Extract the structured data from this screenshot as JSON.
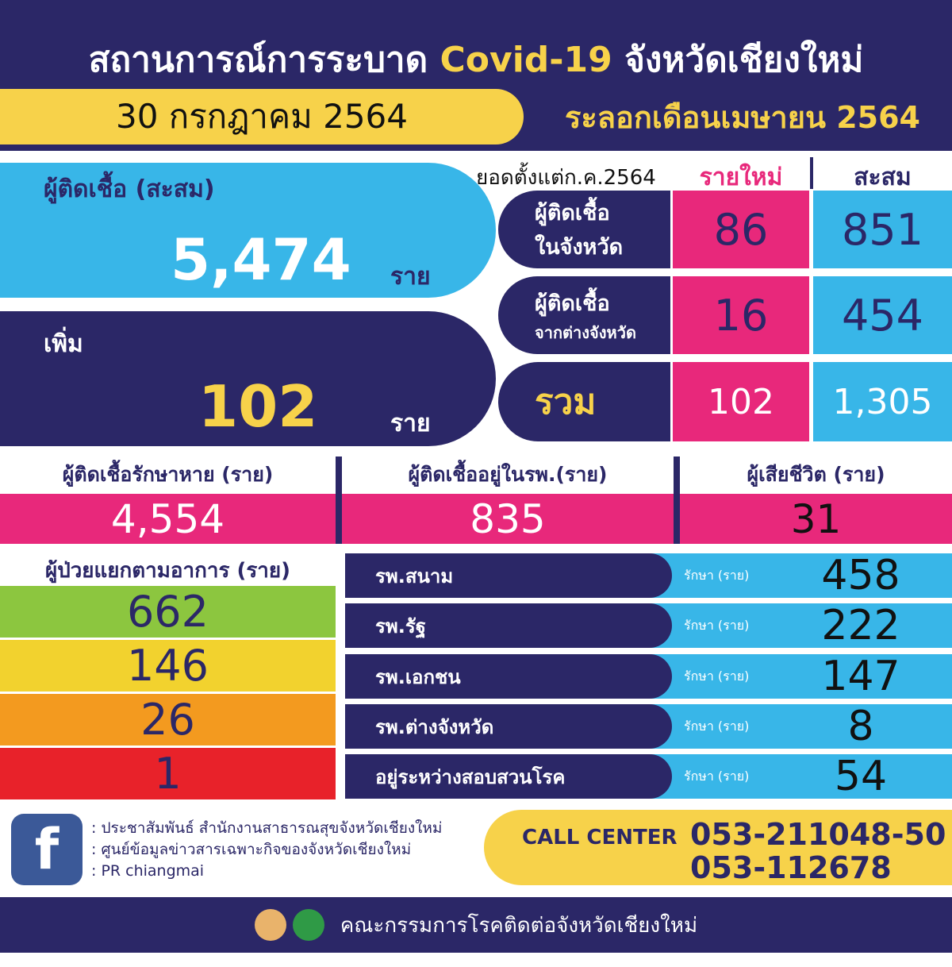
{
  "header": {
    "title_prefix": "สถานการณ์การระบาด",
    "title_highlight": "Covid-19",
    "title_suffix": "จังหวัดเชียงใหม่",
    "date": "30 กรกฎาคม 2564",
    "wave": "ระลอกเดือนเมษายน 2564"
  },
  "cumulative": {
    "label": "ผู้ติดเชื้อ (สะสม)",
    "value": "5,474",
    "unit": "ราย"
  },
  "added": {
    "label": "เพิ่ม",
    "value": 102,
    "unit": "ราย"
  },
  "breakdown": {
    "caption": "ยอดตั้งแต่ก.ค.2564",
    "columns": [
      "รายใหม่",
      "สะสม"
    ],
    "rows": [
      {
        "label": [
          "ผู้ติดเชื้อ",
          "ในจังหวัด"
        ],
        "new": 86,
        "total": 851
      },
      {
        "label": [
          "ผู้ติดเชื้อ",
          "จากต่างจังหวัด"
        ],
        "new": 16,
        "total": 454
      },
      {
        "label": [
          "รวม"
        ],
        "new": 102,
        "total": "1,305"
      }
    ]
  },
  "status": [
    {
      "label": "ผู้ติดเชื้อรักษาหาย (ราย)",
      "value": "4,554"
    },
    {
      "label": "ผู้ติดเชื้ออยู่ในรพ.(ราย)",
      "value": 835
    },
    {
      "label": "ผู้เสียชีวิต (ราย)",
      "value": 31
    }
  ],
  "symptoms": {
    "title": "ผู้ป่วยแยกตามอาการ (ราย)",
    "values": [
      662,
      146,
      26,
      1
    ]
  },
  "hospitals": {
    "unit": "รักษา (ราย)",
    "rows": [
      {
        "name": "รพ.สนาม",
        "value": 458
      },
      {
        "name": "รพ.รัฐ",
        "value": 222
      },
      {
        "name": "รพ.เอกชน",
        "value": 147
      },
      {
        "name": "รพ.ต่างจังหวัด",
        "value": 8
      },
      {
        "name": "อยู่ระหว่างสอบสวนโรค",
        "value": 54
      }
    ]
  },
  "footer": {
    "contacts": [
      ": ประชาสัมพันธ์ สำนักงานสาธารณสุขจังหวัดเชียงใหม่",
      ": ศูนย์ข้อมูลข่าวสารเฉพาะกิจของจังหวัดเชียงใหม่",
      ": PR chiangmai"
    ],
    "call_center_label": "CALL CENTER",
    "phones": [
      "053-211048-50",
      "053-112678"
    ],
    "committee": "คณะกรรมการโรคติดต่อจังหวัดเชียงใหม่"
  }
}
